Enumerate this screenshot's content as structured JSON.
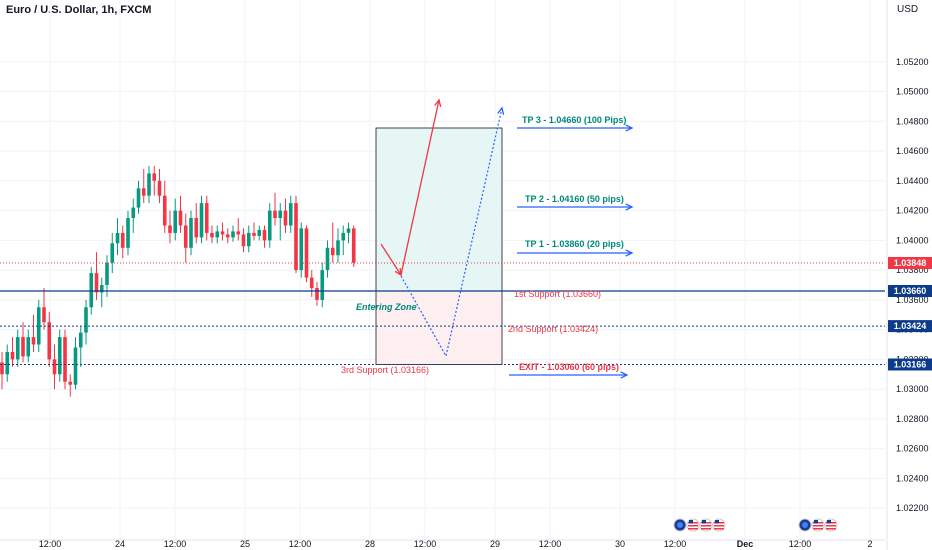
{
  "header": {
    "symbol": "Euro / U.S. Dollar, 1h, FXCM",
    "currency": "USD"
  },
  "chart_data": {
    "type": "candlestick",
    "y_axis": {
      "range": [
        1.0205,
        1.0548
      ],
      "ticks": [
        1.022,
        1.024,
        1.026,
        1.028,
        1.03,
        1.032,
        1.034,
        1.036,
        1.038,
        1.04,
        1.042,
        1.044,
        1.046,
        1.048,
        1.05,
        1.052
      ],
      "tick_labels": [
        "1.02200",
        "1.02400",
        "1.02600",
        "1.02800",
        "1.03000",
        "1.03200",
        "1.03400",
        "1.03600",
        "1.03800",
        "1.04000",
        "1.04200",
        "1.04400",
        "1.04600",
        "1.04800",
        "1.05000",
        "1.05200"
      ]
    },
    "x_axis": {
      "labels": [
        {
          "t": 0.22,
          "text": "12:00"
        },
        {
          "t": 0.5,
          "text": "24"
        },
        {
          "t": 0.72,
          "text": "12:00"
        },
        {
          "t": 1.0,
          "text": "25"
        },
        {
          "t": 1.22,
          "text": "12:00"
        },
        {
          "t": 1.5,
          "text": "28"
        },
        {
          "t": 1.72,
          "text": "12:00"
        },
        {
          "t": 2.0,
          "text": "29"
        },
        {
          "t": 2.22,
          "text": "12:00"
        },
        {
          "t": 2.5,
          "text": "30"
        },
        {
          "t": 2.72,
          "text": "12:00"
        },
        {
          "t": 3.0,
          "text": "Dec"
        },
        {
          "t": 3.22,
          "text": "12:00"
        },
        {
          "t": 3.5,
          "text": "2"
        }
      ]
    },
    "candles": [
      [
        1.0318,
        1.0325,
        1.03,
        1.031
      ],
      [
        1.031,
        1.033,
        1.0305,
        1.0325
      ],
      [
        1.0325,
        1.0335,
        1.0315,
        1.032
      ],
      [
        1.032,
        1.034,
        1.0315,
        1.0335
      ],
      [
        1.0335,
        1.0345,
        1.0318,
        1.0322
      ],
      [
        1.0322,
        1.034,
        1.0318,
        1.0335
      ],
      [
        1.0335,
        1.035,
        1.0325,
        1.033
      ],
      [
        1.033,
        1.036,
        1.0325,
        1.0355
      ],
      [
        1.0355,
        1.0368,
        1.034,
        1.0345
      ],
      [
        1.0345,
        1.0352,
        1.0315,
        1.032
      ],
      [
        1.032,
        1.033,
        1.03,
        1.031
      ],
      [
        1.031,
        1.034,
        1.0305,
        1.0335
      ],
      [
        1.0335,
        1.034,
        1.03,
        1.0305
      ],
      [
        1.0305,
        1.031,
        1.0295,
        1.0303
      ],
      [
        1.0303,
        1.0335,
        1.03,
        1.0328
      ],
      [
        1.0328,
        1.0342,
        1.0315,
        1.0338
      ],
      [
        1.0338,
        1.036,
        1.033,
        1.0355
      ],
      [
        1.0355,
        1.0382,
        1.035,
        1.0378
      ],
      [
        1.0378,
        1.0392,
        1.036,
        1.0365
      ],
      [
        1.0365,
        1.0375,
        1.0355,
        1.037
      ],
      [
        1.037,
        1.039,
        1.0362,
        1.0385
      ],
      [
        1.0385,
        1.0405,
        1.0378,
        1.0398
      ],
      [
        1.0398,
        1.0415,
        1.039,
        1.0405
      ],
      [
        1.0405,
        1.041,
        1.0388,
        1.0395
      ],
      [
        1.0395,
        1.042,
        1.039,
        1.0415
      ],
      [
        1.0415,
        1.0428,
        1.0405,
        1.0422
      ],
      [
        1.0422,
        1.044,
        1.0418,
        1.0435
      ],
      [
        1.0435,
        1.0448,
        1.0425,
        1.043
      ],
      [
        1.043,
        1.045,
        1.0425,
        1.0445
      ],
      [
        1.0445,
        1.045,
        1.043,
        1.044
      ],
      [
        1.044,
        1.0448,
        1.0425,
        1.043
      ],
      [
        1.043,
        1.044,
        1.0405,
        1.041
      ],
      [
        1.041,
        1.042,
        1.0398,
        1.0405
      ],
      [
        1.0405,
        1.0428,
        1.04,
        1.042
      ],
      [
        1.042,
        1.043,
        1.0405,
        1.041
      ],
      [
        1.041,
        1.0418,
        1.0385,
        1.0395
      ],
      [
        1.0395,
        1.042,
        1.039,
        1.0415
      ],
      [
        1.0415,
        1.0425,
        1.0398,
        1.0402
      ],
      [
        1.0402,
        1.043,
        1.0398,
        1.0425
      ],
      [
        1.0425,
        1.043,
        1.04,
        1.0405
      ],
      [
        1.0405,
        1.041,
        1.0398,
        1.0402
      ],
      [
        1.0402,
        1.041,
        1.0398,
        1.0406
      ],
      [
        1.0406,
        1.0412,
        1.04,
        1.0404
      ],
      [
        1.0404,
        1.0408,
        1.0398,
        1.0402
      ],
      [
        1.0402,
        1.041,
        1.0399,
        1.0406
      ],
      [
        1.0406,
        1.0415,
        1.04,
        1.0404
      ],
      [
        1.0404,
        1.0408,
        1.0392,
        1.0396
      ],
      [
        1.0396,
        1.041,
        1.0392,
        1.0405
      ],
      [
        1.0405,
        1.0412,
        1.04,
        1.0403
      ],
      [
        1.0403,
        1.041,
        1.04,
        1.0407
      ],
      [
        1.0407,
        1.041,
        1.0395,
        1.04
      ],
      [
        1.04,
        1.0425,
        1.0395,
        1.042
      ],
      [
        1.042,
        1.0432,
        1.041,
        1.0415
      ],
      [
        1.0415,
        1.0425,
        1.04,
        1.042
      ],
      [
        1.042,
        1.0428,
        1.0405,
        1.041
      ],
      [
        1.041,
        1.043,
        1.0405,
        1.0425
      ],
      [
        1.0425,
        1.043,
        1.0378,
        1.038
      ],
      [
        1.038,
        1.0412,
        1.0375,
        1.0408
      ],
      [
        1.0408,
        1.041,
        1.0372,
        1.0375
      ],
      [
        1.0375,
        1.038,
        1.0362,
        1.0368
      ],
      [
        1.0368,
        1.0372,
        1.0356,
        1.036
      ],
      [
        1.036,
        1.0385,
        1.0355,
        1.038
      ],
      [
        1.038,
        1.04,
        1.0375,
        1.0395
      ],
      [
        1.0395,
        1.0412,
        1.0385,
        1.039
      ],
      [
        1.039,
        1.0408,
        1.0385,
        1.04
      ],
      [
        1.04,
        1.041,
        1.039,
        1.0405
      ],
      [
        1.0405,
        1.0412,
        1.0398,
        1.0408
      ],
      [
        1.0408,
        1.041,
        1.0382,
        1.0385
      ]
    ],
    "price_lines": [
      {
        "value": 1.03848,
        "label": "1.03848",
        "color": "#f23645",
        "style": "dotted"
      },
      {
        "value": 1.0366,
        "label": "1.03660",
        "color": "#0d3b8c",
        "style": "solid"
      },
      {
        "value": 1.03424,
        "label": "1.03424",
        "color": "#0d3b8c",
        "style": "dotted"
      },
      {
        "value": 1.03166,
        "label": "1.03166",
        "color": "#0d3b8c",
        "style": "dotted"
      }
    ],
    "annotations": {
      "tp3": "TP 3 - 1.04660 (100 Pips)",
      "tp2": "TP 2 - 1.04160 (50 pips)",
      "tp1": "TP 1 - 1.03860 (20 pips)",
      "support1": "1st Support (1.03660)",
      "support2": "2nd Support (1.03424)",
      "support3": "3rd Support (1.03166)",
      "exit": "EXIT - 1.03060 (60 pips)",
      "entering_zone": "Entering Zone"
    },
    "position_box": {
      "entry": 1.0366,
      "target": 1.0466,
      "stop": 1.03166
    },
    "colors": {
      "bull": "#089981",
      "bear": "#f23645",
      "tp_text": "#00897b",
      "support_text": "#f23645",
      "arrow_blue": "#2962ff",
      "line_navy": "#0d3b8c",
      "profit_fill": "#e6f6f5",
      "loss_fill": "#fdeef0"
    }
  }
}
